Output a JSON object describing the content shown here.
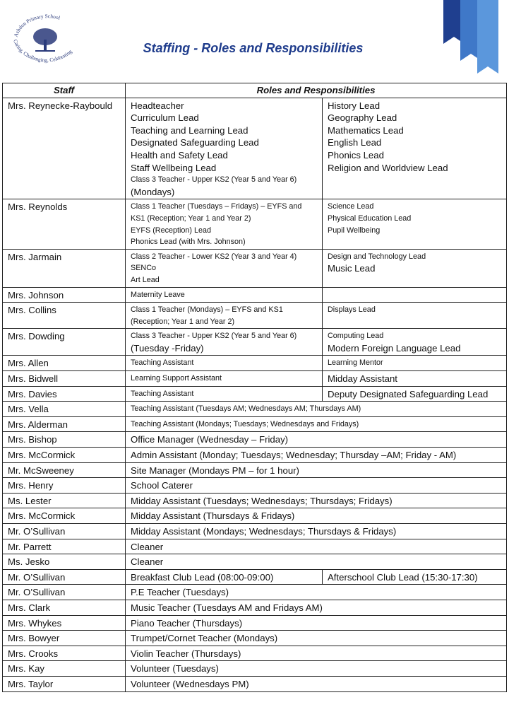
{
  "header": {
    "school": "Ashdon Primary School",
    "motto": "Caring, Challenging, Celebrating",
    "title": "Staffing - Roles and Responsibilities"
  },
  "table": {
    "columns": [
      "Staff",
      "Roles and Responsibilities"
    ],
    "rows": [
      {
        "staff": "Mrs. Reynecke-Raybould",
        "roles": [
          [
            "Headteacher",
            "Curriculum Lead",
            "Teaching and Learning Lead",
            "Designated Safeguarding Lead",
            "Health and Safety Lead",
            "Staff Wellbeing Lead",
            "Class 3 Teacher - Upper KS2 (Year 5 and Year 6)",
            "(Mondays)"
          ],
          [
            "History Lead",
            "Geography Lead",
            "Mathematics Lead",
            "English Lead",
            "Phonics Lead",
            "Religion and Worldview Lead"
          ]
        ]
      },
      {
        "staff": "Mrs. Reynolds",
        "roles": [
          [
            "Class 1 Teacher (Tuesdays – Fridays) – EYFS and",
            "KS1 (Reception; Year 1 and Year 2)",
            "EYFS (Reception) Lead",
            "Phonics Lead (with Mrs. Johnson)"
          ],
          [
            "Science Lead",
            "Physical Education Lead",
            "Pupil Wellbeing"
          ]
        ]
      },
      {
        "staff": "Mrs. Jarmain",
        "roles": [
          [
            "Class 2 Teacher - Lower KS2 (Year 3 and Year 4)",
            "SENCo",
            "Art Lead"
          ],
          [
            "Design and Technology Lead",
            "Music Lead"
          ]
        ]
      },
      {
        "staff": "Mrs. Johnson",
        "roles": [
          [
            "Maternity Leave"
          ],
          []
        ]
      },
      {
        "staff": "Mrs. Collins",
        "roles": [
          [
            "Class 1 Teacher (Mondays) – EYFS and KS1",
            "(Reception; Year 1 and Year 2)"
          ],
          [
            "Displays Lead"
          ]
        ]
      },
      {
        "staff": "Mrs. Dowding",
        "roles": [
          [
            "Class 3 Teacher - Upper KS2 (Year 5 and Year 6)",
            "(Tuesday -Friday)"
          ],
          [
            "Computing Lead",
            "Modern Foreign Language Lead"
          ]
        ]
      },
      {
        "staff": "Mrs. Allen",
        "roles": [
          [
            "Teaching Assistant"
          ],
          [
            "Learning Mentor"
          ]
        ]
      },
      {
        "staff": "Mrs. Bidwell",
        "roles": [
          [
            "Learning Support Assistant"
          ],
          [
            "Midday Assistant"
          ]
        ]
      },
      {
        "staff": "Mrs. Davies",
        "roles": [
          [
            "Teaching Assistant"
          ],
          [
            "Deputy Designated Safeguarding Lead"
          ]
        ]
      },
      {
        "staff": "Mrs. Vella",
        "roles": [
          [
            "Teaching Assistant (Tuesdays AM; Wednesdays AM; Thursdays AM)"
          ]
        ]
      },
      {
        "staff": "Mrs. Alderman",
        "roles": [
          [
            "Teaching Assistant (Mondays; Tuesdays; Wednesdays and Fridays)"
          ]
        ]
      },
      {
        "staff": "Mrs. Bishop",
        "roles": [
          [
            "Office Manager (Wednesday – Friday)"
          ]
        ]
      },
      {
        "staff": "Mrs. McCormick",
        "roles": [
          [
            "Admin Assistant (Monday; Tuesdays; Wednesday; Thursday –AM; Friday - AM)"
          ]
        ]
      },
      {
        "staff": "Mr. McSweeney",
        "roles": [
          [
            "Site Manager (Mondays PM – for 1 hour)"
          ]
        ]
      },
      {
        "staff": "Mrs. Henry",
        "roles": [
          [
            "School Caterer"
          ]
        ]
      },
      {
        "staff": "Ms. Lester",
        "roles": [
          [
            "Midday Assistant (Tuesdays; Wednesdays; Thursdays; Fridays)"
          ]
        ]
      },
      {
        "staff": "Mrs. McCormick",
        "roles": [
          [
            "Midday Assistant (Thursdays & Fridays)"
          ]
        ]
      },
      {
        "staff": "Mr. O’Sullivan",
        "roles": [
          [
            "Midday Assistant (Mondays; Wednesdays; Thursdays & Fridays)"
          ]
        ]
      },
      {
        "staff": "Mr. Parrett",
        "roles": [
          [
            "Cleaner"
          ]
        ]
      },
      {
        "staff": "Ms. Jesko",
        "roles": [
          [
            "Cleaner"
          ]
        ]
      },
      {
        "staff": "Mr. O’Sullivan",
        "roles": [
          [
            "Breakfast Club Lead (08:00-09:00)"
          ],
          [
            "Afterschool Club Lead (15:30-17:30)"
          ]
        ]
      },
      {
        "staff": "Mr. O’Sullivan",
        "roles": [
          [
            "P.E Teacher (Tuesdays)"
          ]
        ]
      },
      {
        "staff": "Mrs. Clark",
        "roles": [
          [
            "Music Teacher (Tuesdays AM and Fridays AM)"
          ]
        ]
      },
      {
        "staff": "Mrs. Whykes",
        "roles": [
          [
            "Piano Teacher (Thursdays)"
          ]
        ]
      },
      {
        "staff": "Mrs. Bowyer",
        "roles": [
          [
            "Trumpet/Cornet Teacher (Mondays)"
          ]
        ]
      },
      {
        "staff": "Mrs. Crooks",
        "roles": [
          [
            "Violin Teacher (Thursdays)"
          ]
        ]
      },
      {
        "staff": "Mrs. Kay",
        "roles": [
          [
            "Volunteer (Tuesdays)"
          ]
        ]
      },
      {
        "staff": "Mrs. Taylor",
        "roles": [
          [
            "Volunteer (Wednesdays PM)"
          ]
        ]
      }
    ]
  }
}
